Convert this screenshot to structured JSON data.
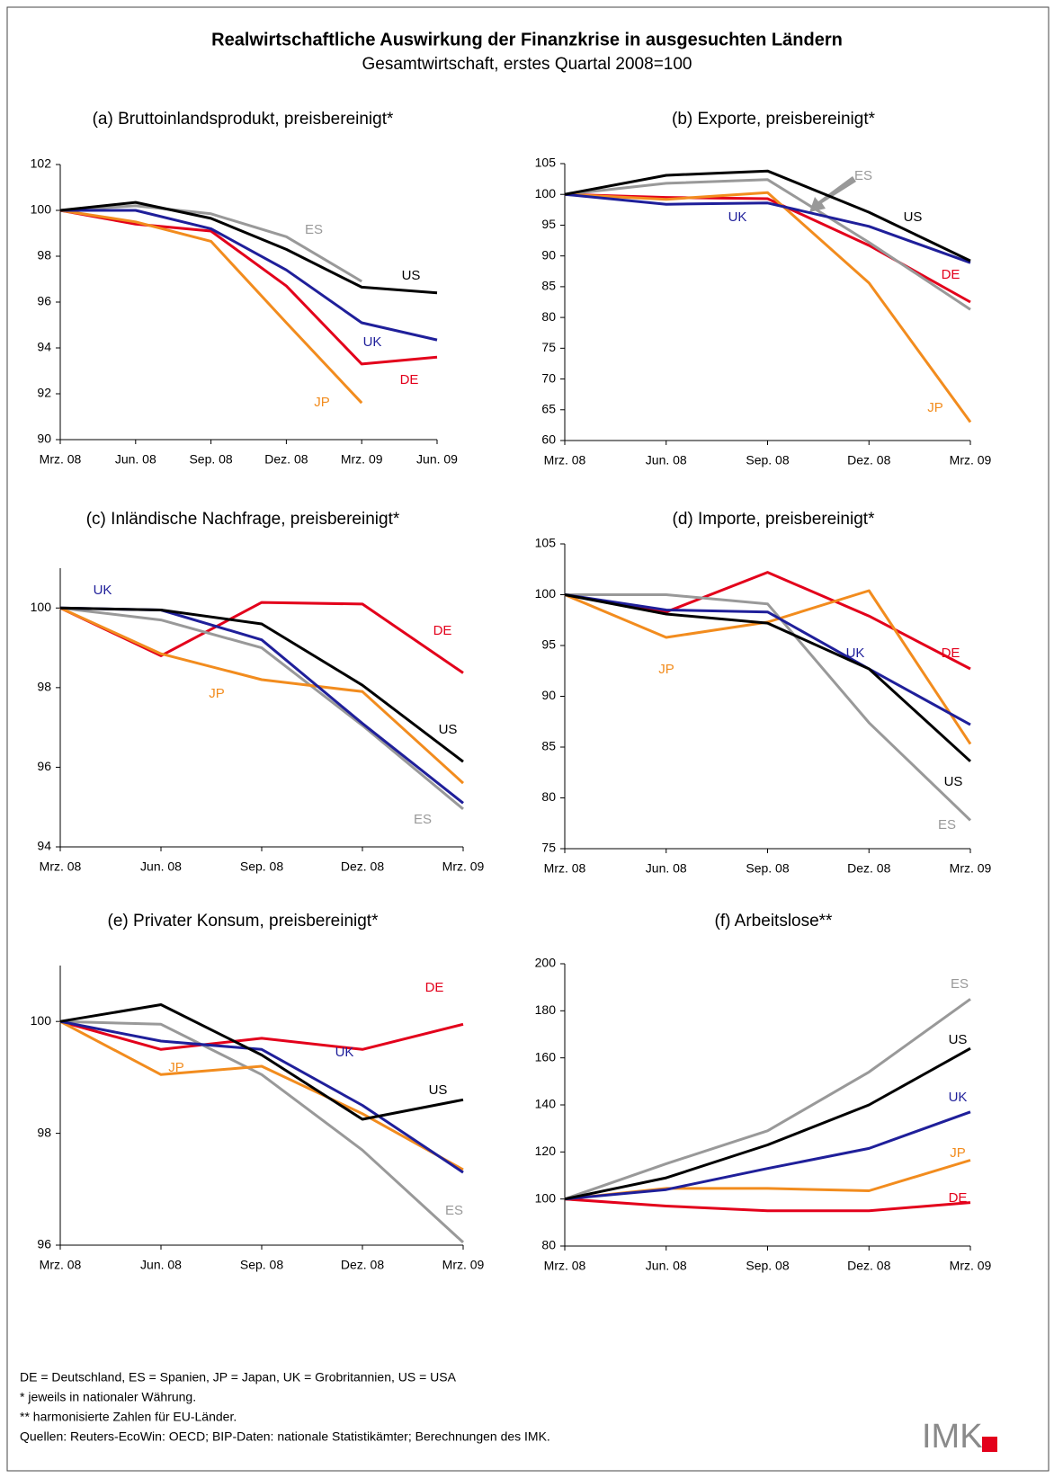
{
  "title": "Realwirtschaftliche Auswirkung der Finanzkrise in ausgesuchten Ländern",
  "subtitle": "Gesamtwirtschaft, erstes Quartal 2008=100",
  "notes": [
    "DE = Deutschland, ES = Spanien, JP = Japan, UK = Grobritannien, US = USA",
    "*   jeweils in nationaler Währung.",
    "** harmonisierte Zahlen für EU-Länder.",
    "Quellen: Reuters-EcoWin: OECD; BIP-Daten: nationale Statistikämter; Berechnungen des IMK."
  ],
  "logo": "IMK",
  "chart_data": [
    {
      "type": "line",
      "title": "(a) Bruttoinlandsprodukt, preisbereinigt*",
      "categories": [
        "Mrz. 08",
        "Jun. 08",
        "Sep. 08",
        "Dez. 08",
        "Mrz. 09",
        "Jun. 09"
      ],
      "ylim": [
        90,
        102
      ],
      "yticks": [
        90,
        92,
        94,
        96,
        98,
        100,
        102
      ],
      "series": [
        {
          "name": "DE",
          "color": "#e3001b",
          "values": [
            100,
            99.4,
            99.1,
            96.7,
            93.3,
            93.6
          ]
        },
        {
          "name": "ES",
          "color": "#999999",
          "values": [
            100,
            100.2,
            99.85,
            98.85,
            96.9,
            null
          ]
        },
        {
          "name": "JP",
          "color": "#f28c1e",
          "values": [
            100,
            99.5,
            98.65,
            95.1,
            91.6,
            null
          ]
        },
        {
          "name": "UK",
          "color": "#1f1f9a",
          "values": [
            100,
            100,
            99.2,
            97.4,
            95.1,
            94.35
          ]
        },
        {
          "name": "US",
          "color": "#000000",
          "values": [
            100,
            100.35,
            99.65,
            98.3,
            96.65,
            96.4
          ]
        }
      ]
    },
    {
      "type": "line",
      "title": "(b) Exporte, preisbereinigt*",
      "categories": [
        "Mrz. 08",
        "Jun. 08",
        "Sep. 08",
        "Dez. 08",
        "Mrz. 09"
      ],
      "ylim": [
        60,
        105
      ],
      "yticks": [
        60,
        65,
        70,
        75,
        80,
        85,
        90,
        95,
        100,
        105
      ],
      "series": [
        {
          "name": "DE",
          "color": "#e3001b",
          "values": [
            100,
            99.5,
            99.3,
            91.7,
            82.5
          ]
        },
        {
          "name": "ES",
          "color": "#999999",
          "values": [
            100,
            101.8,
            102.4,
            92.2,
            81.3
          ]
        },
        {
          "name": "JP",
          "color": "#f28c1e",
          "values": [
            100,
            99.2,
            100.3,
            85.6,
            63
          ]
        },
        {
          "name": "UK",
          "color": "#1f1f9a",
          "values": [
            100,
            98.4,
            98.6,
            94.8,
            88.9
          ]
        },
        {
          "name": "US",
          "color": "#000000",
          "values": [
            100,
            103.1,
            103.8,
            97.1,
            89.2
          ]
        }
      ]
    },
    {
      "type": "line",
      "title": "(c) Inländische Nachfrage, preisbereinigt*",
      "categories": [
        "Mrz. 08",
        "Jun. 08",
        "Sep. 08",
        "Dez. 08",
        "Mrz. 09"
      ],
      "ylim": [
        94,
        101
      ],
      "yticks": [
        94,
        96,
        98,
        100
      ],
      "series": [
        {
          "name": "DE",
          "color": "#e3001b",
          "values": [
            100,
            98.8,
            100.14,
            100.1,
            98.37
          ]
        },
        {
          "name": "ES",
          "color": "#999999",
          "values": [
            100,
            99.7,
            99,
            97.05,
            94.95
          ]
        },
        {
          "name": "JP",
          "color": "#f28c1e",
          "values": [
            100,
            98.85,
            98.2,
            97.9,
            95.6
          ]
        },
        {
          "name": "UK",
          "color": "#1f1f9a",
          "values": [
            100,
            99.95,
            99.2,
            97.1,
            95.1
          ]
        },
        {
          "name": "US",
          "color": "#000000",
          "values": [
            100,
            99.95,
            99.6,
            98.06,
            96.14
          ]
        }
      ]
    },
    {
      "type": "line",
      "title": "(d) Importe, preisbereinigt*",
      "categories": [
        "Mrz. 08",
        "Jun. 08",
        "Sep. 08",
        "Dez. 08",
        "Mrz. 09"
      ],
      "ylim": [
        75,
        105
      ],
      "yticks": [
        75,
        80,
        85,
        90,
        95,
        100,
        105
      ],
      "series": [
        {
          "name": "DE",
          "color": "#e3001b",
          "values": [
            100,
            98.3,
            102.2,
            97.9,
            92.7
          ]
        },
        {
          "name": "ES",
          "color": "#999999",
          "values": [
            100,
            100,
            99.1,
            87.4,
            77.8
          ]
        },
        {
          "name": "JP",
          "color": "#f28c1e",
          "values": [
            100,
            95.8,
            97.3,
            100.4,
            85.3
          ]
        },
        {
          "name": "UK",
          "color": "#1f1f9a",
          "values": [
            100,
            98.5,
            98.3,
            92.7,
            87.2
          ]
        },
        {
          "name": "US",
          "color": "#000000",
          "values": [
            100,
            98.1,
            97.2,
            92.7,
            83.6
          ]
        }
      ]
    },
    {
      "type": "line",
      "title": "(e) Privater Konsum, preisbereinigt*",
      "categories": [
        "Mrz. 08",
        "Jun. 08",
        "Sep. 08",
        "Dez. 08",
        "Mrz. 09"
      ],
      "ylim": [
        96,
        101
      ],
      "yticks": [
        96,
        98,
        100
      ],
      "series": [
        {
          "name": "DE",
          "color": "#e3001b",
          "values": [
            100,
            99.5,
            99.7,
            99.5,
            99.95
          ]
        },
        {
          "name": "ES",
          "color": "#999999",
          "values": [
            100,
            99.95,
            99.05,
            97.7,
            96.05
          ]
        },
        {
          "name": "JP",
          "color": "#f28c1e",
          "values": [
            100,
            99.05,
            99.2,
            98.35,
            97.35
          ]
        },
        {
          "name": "UK",
          "color": "#1f1f9a",
          "values": [
            100,
            99.65,
            99.5,
            98.5,
            97.3
          ]
        },
        {
          "name": "US",
          "color": "#000000",
          "values": [
            100,
            100.3,
            99.4,
            98.25,
            98.6
          ]
        }
      ]
    },
    {
      "type": "line",
      "title": "(f) Arbeitslose**",
      "categories": [
        "Mrz. 08",
        "Jun. 08",
        "Sep. 08",
        "Dez. 08",
        "Mrz. 09"
      ],
      "ylim": [
        80,
        200
      ],
      "yticks": [
        80,
        100,
        120,
        140,
        160,
        180,
        200
      ],
      "series": [
        {
          "name": "DE",
          "color": "#e3001b",
          "values": [
            100,
            97,
            95,
            95,
            98.5
          ]
        },
        {
          "name": "ES",
          "color": "#999999",
          "values": [
            100,
            115,
            129,
            154,
            185
          ]
        },
        {
          "name": "JP",
          "color": "#f28c1e",
          "values": [
            100,
            104.5,
            104.5,
            103.5,
            116.5
          ]
        },
        {
          "name": "UK",
          "color": "#1f1f9a",
          "values": [
            100,
            104,
            113,
            121.5,
            137
          ]
        },
        {
          "name": "US",
          "color": "#000000",
          "values": [
            100,
            109,
            123,
            140,
            164
          ]
        }
      ]
    }
  ]
}
